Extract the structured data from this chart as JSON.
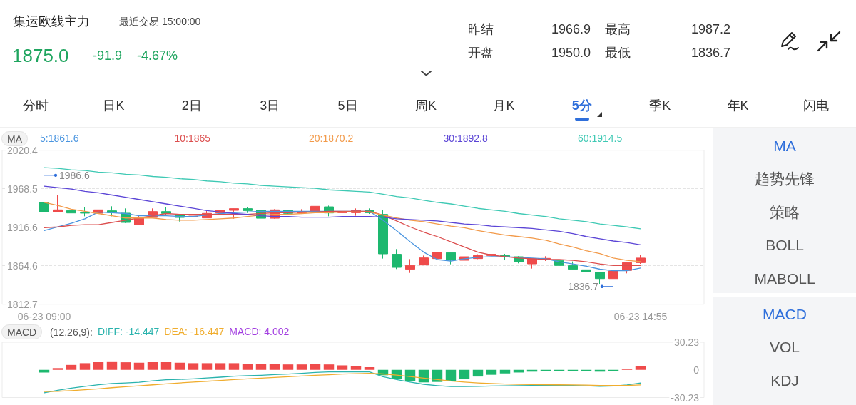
{
  "chart_data": [
    {
      "type": "other",
      "title": "集运欧线主力",
      "subtitle": "最近交易 15:00:00",
      "annotations": [
        "1875.0",
        "-91.9",
        "-4.67%",
        "昨结",
        "1966.9",
        "最高",
        "1987.2",
        "开盘",
        "1950.0",
        "最低",
        "1836.7"
      ]
    },
    {
      "type": "other",
      "annotations": [
        "分时",
        "日K",
        "2日",
        "3日",
        "5日",
        "周K",
        "月K",
        "5分",
        "季K",
        "年K",
        "闪电"
      ]
    },
    {
      "type": "candlestick",
      "title": "MA",
      "categories": [
        "06-23 09:00",
        null,
        null,
        null,
        null,
        null,
        null,
        null,
        null,
        null,
        null,
        null,
        null,
        null,
        null,
        null,
        null,
        null,
        null,
        null,
        null,
        null,
        null,
        null,
        null,
        null,
        null,
        null,
        null,
        null,
        null,
        null,
        null,
        null,
        null,
        null,
        null,
        null,
        null,
        null,
        null,
        null,
        null,
        null,
        "06-23 14:55"
      ],
      "ohlc": [
        [
          1950.0,
          1986.6,
          1931.9,
          1937.1
        ],
        [
          1937.1,
          1960.2,
          1936.5,
          1940.0
        ],
        [
          1939.0,
          1944.8,
          1923.3,
          1935.8
        ],
        [
          1935.9,
          1944.1,
          1931.3,
          1935.6
        ],
        [
          1935.5,
          1949.6,
          1933.9,
          1940.0
        ],
        [
          1938.7,
          1944.8,
          1931.3,
          1936.1
        ],
        [
          1935.5,
          1941.9,
          1922.3,
          1923.0
        ],
        [
          1919.8,
          1931.9,
          1919.5,
          1928.7
        ],
        [
          1929.7,
          1941.9,
          1928.7,
          1937.7
        ],
        [
          1937.7,
          1944.1,
          1932.9,
          1935.2
        ],
        [
          1933.9,
          1934.5,
          1924.3,
          1929.7
        ],
        [
          1930.7,
          1934.5,
          1927.5,
          1931.6
        ],
        [
          1929.1,
          1938.4,
          1929.0,
          1935.2
        ],
        [
          1935.8,
          1940.9,
          1934.5,
          1939.7
        ],
        [
          1939.3,
          1941.8,
          1928.1,
          1941.6
        ],
        [
          1941.6,
          1944.1,
          1935.8,
          1939.0
        ],
        [
          1939.3,
          1939.3,
          1928.7,
          1928.7
        ],
        [
          1928.7,
          1940.9,
          1928.1,
          1940.0
        ],
        [
          1939.3,
          1939.5,
          1934.5,
          1935.2
        ],
        [
          1935.8,
          1940.9,
          1934.5,
          1937.1
        ],
        [
          1937.1,
          1946.7,
          1936.9,
          1944.8
        ],
        [
          1944.1,
          1945.7,
          1931.3,
          1935.8
        ],
        [
          1936.1,
          1941.6,
          1935.2,
          1937.7
        ],
        [
          1936.1,
          1941.9,
          1932.0,
          1939.3
        ],
        [
          1939.3,
          1941.9,
          1934.5,
          1936.1
        ],
        [
          1933.9,
          1940.3,
          1874.3,
          1880.7
        ],
        [
          1880.1,
          1887.1,
          1860.2,
          1862.4
        ],
        [
          1859.9,
          1873.6,
          1855.0,
          1865.0
        ],
        [
          1865.6,
          1878.4,
          1865.4,
          1875.2
        ],
        [
          1874.3,
          1883.9,
          1872.0,
          1882.6
        ],
        [
          1882.3,
          1882.6,
          1866.6,
          1872.0
        ],
        [
          1872.0,
          1878.4,
          1871.8,
          1876.8
        ],
        [
          1874.3,
          1880.1,
          1873.6,
          1878.4
        ],
        [
          1878.4,
          1883.2,
          1872.0,
          1880.1
        ],
        [
          1878.4,
          1880.7,
          1872.0,
          1876.8
        ],
        [
          1876.8,
          1877.5,
          1867.9,
          1869.8
        ],
        [
          1867.2,
          1874.5,
          1860.8,
          1874.3
        ],
        [
          1873.6,
          1877.5,
          1871.1,
          1874.6
        ],
        [
          1871.4,
          1871.6,
          1849.6,
          1865.0
        ],
        [
          1864.7,
          1870.4,
          1859.7,
          1859.9
        ],
        [
          1859.2,
          1867.9,
          1851.8,
          1856.7
        ],
        [
          1856.0,
          1856.2,
          1840.0,
          1847.3
        ],
        [
          1847.3,
          1860.8,
          1836.7,
          1857.6
        ],
        [
          1858.3,
          1869.0,
          1854.4,
          1868.8
        ],
        [
          1868.8,
          1879.1,
          1867.2,
          1875.0
        ]
      ],
      "colors": [
        "#1db86f",
        "#ef4b4b",
        "#1db86f",
        "#1db86f",
        "#ef4b4b",
        "#1db86f",
        "#1db86f",
        "#ef4b4b",
        "#ef4b4b",
        "#1db86f",
        "#1db86f",
        "#ef4b4b",
        "#ef4b4b",
        "#ef4b4b",
        "#ef4b4b",
        "#1db86f",
        "#1db86f",
        "#ef4b4b",
        "#1db86f",
        "#ef4b4b",
        "#ef4b4b",
        "#1db86f",
        "#ef4b4b",
        "#ef4b4b",
        "#1db86f",
        "#1db86f",
        "#1db86f",
        "#ef4b4b",
        "#ef4b4b",
        "#ef4b4b",
        "#1db86f",
        "#ef4b4b",
        "#ef4b4b",
        "#ef4b4b",
        "#1db86f",
        "#1db86f",
        "#ef4b4b",
        "#ef4b4b",
        "#1db86f",
        "#1db86f",
        "#1db86f",
        "#1db86f",
        "#ef4b4b",
        "#ef4b4b",
        "#ef4b4b"
      ],
      "series": [
        {
          "name": "5:1861.6",
          "type": "line",
          "color": "#4a95e0",
          "values": [
            1912,
            1917,
            1922,
            1928,
            1937,
            1936,
            1935,
            1932,
            1932,
            1932,
            1931,
            1931,
            1933,
            1935,
            1936,
            1937,
            1938,
            1938,
            1938,
            1938,
            1938,
            1938,
            1938,
            1938,
            1938,
            1926,
            1912,
            1897,
            1883,
            1873,
            1871,
            1874,
            1876,
            1877,
            1877,
            1876,
            1875,
            1874,
            1870,
            1867,
            1864,
            1860,
            1858,
            1858,
            1861.6
          ]
        },
        {
          "name": "10:1865",
          "type": "line",
          "color": "#dc4e4e",
          "values": [
            1916,
            1917,
            1919,
            1920,
            1920,
            1923,
            1926,
            1929,
            1932,
            1935,
            1934,
            1934,
            1934,
            1934,
            1934,
            1934,
            1935,
            1936,
            1936,
            1937,
            1937,
            1938,
            1938,
            1938,
            1938,
            1933,
            1925,
            1917,
            1910,
            1904,
            1897,
            1890,
            1883,
            1879,
            1877,
            1875,
            1874,
            1873,
            1873,
            1872,
            1870,
            1867,
            1865,
            1865,
            1865
          ]
        },
        {
          "name": "20:1870.2",
          "type": "line",
          "color": "#f29a4a",
          "values": [
            1950,
            1946,
            1941,
            1938,
            1935,
            1932,
            1929,
            1929,
            1929,
            1927,
            1926,
            1926,
            1927,
            1928,
            1929,
            1931,
            1933,
            1934,
            1934,
            1935,
            1936,
            1936,
            1937,
            1937,
            1937,
            1933,
            1929,
            1926,
            1924,
            1921,
            1918,
            1916,
            1912,
            1909,
            1906,
            1904,
            1902,
            1899,
            1894,
            1890,
            1885,
            1881,
            1875,
            1872,
            1870.2
          ]
        },
        {
          "name": "30:1892.8",
          "type": "line",
          "color": "#5b45d6",
          "values": [
            1972,
            1970,
            1968,
            1965,
            1963,
            1960,
            1957,
            1954,
            1951,
            1948,
            1945,
            1942,
            1939,
            1937,
            1935,
            1934,
            1932,
            1931,
            1931,
            1930,
            1930,
            1930,
            1931,
            1931,
            1931,
            1930,
            1928,
            1927,
            1926,
            1925,
            1923,
            1921,
            1920,
            1918,
            1917,
            1916,
            1915,
            1913,
            1911,
            1908,
            1904,
            1901,
            1898,
            1896,
            1892.8
          ]
        },
        {
          "name": "60:1914.5",
          "type": "line",
          "color": "#3ec9b4",
          "values": [
            1997,
            1996,
            1994,
            1993,
            1991,
            1990,
            1988,
            1987,
            1985,
            1984,
            1982,
            1981,
            1979,
            1978,
            1976,
            1975,
            1973,
            1972,
            1971,
            1970,
            1969,
            1967,
            1966,
            1965,
            1964,
            1961,
            1958,
            1956,
            1953,
            1950,
            1948,
            1945,
            1942,
            1940,
            1938,
            1935,
            1933,
            1931,
            1928,
            1926,
            1924,
            1921,
            1919,
            1917,
            1914.5
          ]
        }
      ],
      "ylim": [
        1812.7,
        2020.4
      ],
      "yticks": [
        1812.7,
        1864.6,
        1916.6,
        1968.5,
        2020.4
      ],
      "grid": "y",
      "legend": "top left",
      "marker": "none",
      "annotations": [
        {
          "text": "1986.6",
          "x": "06-23 09:00",
          "y": 1986.6
        },
        "1836.7"
      ]
    },
    {
      "type": "bar",
      "title": "MACD",
      "legend_title": "(12,26,9):",
      "categories": [
        null,
        null,
        null,
        null,
        null,
        null,
        null,
        null,
        null,
        null,
        null,
        null,
        null,
        null,
        null,
        null,
        null,
        null,
        null,
        null,
        null,
        null,
        null,
        null,
        null,
        null,
        null,
        null,
        null,
        null,
        null,
        null,
        null,
        null,
        null,
        null,
        null,
        null,
        null,
        null,
        null,
        null,
        null,
        null,
        null
      ],
      "series": [
        {
          "name": "DIFF: -14.447",
          "type": "line",
          "color": "#2ab3ad",
          "values": [
            -25.1,
            -22.4,
            -20.0,
            -18.1,
            -16.3,
            -14.9,
            -14.3,
            -13.6,
            -12.0,
            -10.9,
            -10.4,
            -9.8,
            -8.9,
            -8.0,
            -7.0,
            -6.4,
            -5.9,
            -5.1,
            -4.6,
            -3.8,
            -2.8,
            -2.3,
            -2.2,
            -2.2,
            -2.3,
            -7.5,
            -10.7,
            -13.4,
            -15.8,
            -17.2,
            -18.3,
            -18.3,
            -18.0,
            -17.7,
            -17.4,
            -17.3,
            -17.1,
            -17.0,
            -16.9,
            -17.0,
            -17.5,
            -18.0,
            -17.6,
            -16.5,
            -14.447
          ]
        },
        {
          "name": "DEA: -16.447",
          "type": "line",
          "color": "#f0ad2e",
          "values": [
            -23.6,
            -23.4,
            -22.7,
            -21.8,
            -20.7,
            -19.5,
            -18.5,
            -17.5,
            -16.4,
            -15.3,
            -14.3,
            -13.4,
            -12.5,
            -11.6,
            -10.7,
            -9.8,
            -9.1,
            -8.3,
            -7.5,
            -6.8,
            -6.0,
            -5.3,
            -4.6,
            -4.2,
            -3.8,
            -4.5,
            -5.8,
            -7.3,
            -9.0,
            -10.6,
            -12.2,
            -13.4,
            -14.3,
            -15.0,
            -15.5,
            -15.8,
            -16.1,
            -16.3,
            -16.4,
            -16.5,
            -16.7,
            -17.0,
            -17.1,
            -17.0,
            -16.447
          ]
        },
        {
          "name": "MACD: 4.002",
          "color": "#a23de0",
          "colors": [
            "#1db86f",
            "#ef4b4b",
            "#ef4b4b",
            "#ef4b4b",
            "#ef4b4b",
            "#ef4b4b",
            "#ef4b4b",
            "#ef4b4b",
            "#ef4b4b",
            "#ef4b4b",
            "#ef4b4b",
            "#ef4b4b",
            "#ef4b4b",
            "#ef4b4b",
            "#ef4b4b",
            "#ef4b4b",
            "#ef4b4b",
            "#ef4b4b",
            "#ef4b4b",
            "#ef4b4b",
            "#ef4b4b",
            "#ef4b4b",
            "#ef4b4b",
            "#ef4b4b",
            "#ef4b4b",
            "#1db86f",
            "#1db86f",
            "#1db86f",
            "#1db86f",
            "#1db86f",
            "#1db86f",
            "#1db86f",
            "#1db86f",
            "#1db86f",
            "#1db86f",
            "#1db86f",
            "#1db86f",
            "#1db86f",
            "#1db86f",
            "#1db86f",
            "#1db86f",
            "#1db86f",
            "#1db86f",
            "#ef4b4b",
            "#ef4b4b"
          ],
          "values": [
            -2.9,
            1.9,
            5.4,
            7.3,
            8.8,
            9.3,
            8.3,
            7.8,
            8.8,
            8.8,
            7.8,
            7.3,
            7.3,
            7.3,
            7.3,
            6.8,
            6.3,
            6.3,
            5.9,
            5.9,
            6.3,
            5.9,
            4.9,
            3.9,
            2.9,
            -5.9,
            -9.8,
            -12.2,
            -13.7,
            -13.2,
            -12.2,
            -9.8,
            -7.3,
            -5.4,
            -3.9,
            -2.9,
            -2.0,
            -1.5,
            -1.0,
            -1.0,
            -1.5,
            -2.0,
            -1.0,
            1.0,
            4.002
          ]
        }
      ],
      "ylim": [
        -30.23,
        30.23
      ],
      "yticks": [
        -30.23,
        0,
        30.23
      ],
      "legend": "top left",
      "marker": "none",
      "tick_labels": "y"
    },
    {
      "type": "other",
      "annotations": [
        "MA",
        "趋势先锋",
        "策略",
        "BOLL",
        "MABOLL"
      ]
    },
    {
      "type": "other",
      "annotations": [
        "MACD",
        "VOL",
        "KDJ"
      ]
    }
  ]
}
